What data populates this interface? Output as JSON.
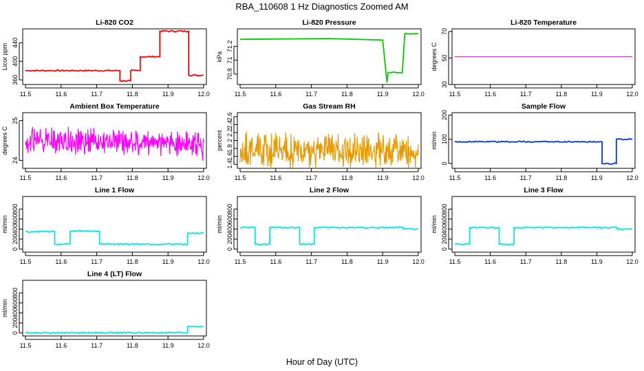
{
  "figure": {
    "title": "RBA_110608  1 Hz Diagnostics Zoomed AM",
    "xlabel": "Hour of Day (UTC)"
  },
  "chart_data": [
    {
      "type": "line",
      "title": "Li-820 CO2",
      "ylabel": "Licor ppm",
      "xlim": [
        11.5,
        12.0
      ],
      "ylim": [
        350,
        470
      ],
      "xticks": [
        "11.5",
        "11.6",
        "11.7",
        "11.8",
        "11.9",
        "12.0"
      ],
      "yticks": [
        360,
        400,
        440
      ],
      "color": "#ff0000",
      "style": "step",
      "series": [
        {
          "values": [
            [
              11.5,
              380
            ],
            [
              11.765,
              380
            ],
            [
              11.765,
              358
            ],
            [
              11.795,
              358
            ],
            [
              11.795,
              380
            ],
            [
              11.822,
              380
            ],
            [
              11.822,
              410
            ],
            [
              11.877,
              410
            ],
            [
              11.877,
              465
            ],
            [
              11.958,
              465
            ],
            [
              11.958,
              370
            ],
            [
              12.0,
              370
            ]
          ]
        }
      ]
    },
    {
      "type": "line",
      "title": "Li-820 Pressure",
      "ylabel": "kPa",
      "xlim": [
        11.5,
        12.0
      ],
      "ylim": [
        70.65,
        71.45
      ],
      "xticks": [
        "11.5",
        "11.6",
        "11.7",
        "11.8",
        "11.9",
        "12.0"
      ],
      "yticks": [
        70.8,
        71.0,
        71.2
      ],
      "color": "#00cc00",
      "style": "step",
      "series": [
        {
          "values": [
            [
              11.5,
              71.3
            ],
            [
              11.75,
              71.31
            ],
            [
              11.9,
              71.29
            ],
            [
              11.912,
              70.68
            ],
            [
              11.915,
              70.82
            ],
            [
              11.955,
              70.82
            ],
            [
              11.962,
              71.38
            ],
            [
              12.0,
              71.38
            ]
          ]
        }
      ]
    },
    {
      "type": "line",
      "title": "Li-820 Temperature",
      "ylabel": "degrees C",
      "xlim": [
        11.5,
        12.0
      ],
      "ylim": [
        30,
        72
      ],
      "xticks": [
        "11.5",
        "11.6",
        "11.7",
        "11.8",
        "11.9",
        "12.0"
      ],
      "yticks": [
        30,
        50,
        70
      ],
      "color": "#cc33cc",
      "style": "flat",
      "series": [
        {
          "values": [
            [
              11.5,
              51
            ],
            [
              12.0,
              51
            ]
          ]
        }
      ]
    },
    {
      "type": "line",
      "title": "Ambient Box Temperature",
      "ylabel": "degrees C",
      "xlim": [
        11.5,
        12.0
      ],
      "ylim": [
        23.8,
        25.2
      ],
      "xticks": [
        "11.5",
        "11.6",
        "11.7",
        "11.8",
        "11.9",
        "12.0"
      ],
      "yticks": [
        24.0,
        25.0
      ],
      "color": "#ff00ff",
      "style": "noise",
      "series": [
        {
          "values": [
            [
              11.5,
              24.5
            ],
            [
              11.9,
              24.45
            ],
            [
              12.0,
              24.35
            ]
          ]
        }
      ]
    },
    {
      "type": "line",
      "title": "Gas Stream RH",
      "ylabel": "percent",
      "xlim": [
        11.5,
        12.0
      ],
      "ylim": [
        1.3,
        2.7
      ],
      "xticks": [
        "11.5",
        "11.6",
        "11.7",
        "11.8",
        "11.9",
        "12.0"
      ],
      "yticks": [
        1.4,
        1.6,
        1.8,
        2.0,
        2.2,
        2.4,
        2.6
      ],
      "color": "#e69a00",
      "style": "noise",
      "series": [
        {
          "values": [
            [
              11.5,
              1.75
            ],
            [
              12.0,
              1.75
            ]
          ]
        }
      ]
    },
    {
      "type": "line",
      "title": "Sample Flow",
      "ylabel": "ml/min",
      "xlim": [
        11.5,
        12.0
      ],
      "ylim": [
        -20,
        210
      ],
      "xticks": [
        "11.5",
        "11.6",
        "11.7",
        "11.8",
        "11.9",
        "12.0"
      ],
      "yticks": [
        0,
        100,
        200
      ],
      "color": "#0033ff",
      "style": "step",
      "series": [
        {
          "values": [
            [
              11.5,
              90
            ],
            [
              11.915,
              90
            ],
            [
              11.915,
              0
            ],
            [
              11.955,
              0
            ],
            [
              11.955,
              100
            ],
            [
              12.0,
              100
            ]
          ]
        }
      ]
    },
    {
      "type": "line",
      "title": "Line 1 Flow",
      "ylabel": "ml/min",
      "xlim": [
        11.5,
        12.0
      ],
      "ylim": [
        -60,
        1050
      ],
      "xticks": [
        "11.5",
        "11.6",
        "11.7",
        "11.8",
        "11.9",
        "12.0"
      ],
      "yticks": [
        0,
        200,
        400,
        600,
        800
      ],
      "color": "#00e5e5",
      "style": "step",
      "series": [
        {
          "values": [
            [
              11.5,
              350
            ],
            [
              11.582,
              350
            ],
            [
              11.582,
              100
            ],
            [
              11.625,
              100
            ],
            [
              11.625,
              360
            ],
            [
              11.708,
              360
            ],
            [
              11.708,
              100
            ],
            [
              11.955,
              100
            ],
            [
              11.955,
              320
            ],
            [
              12.0,
              320
            ]
          ]
        }
      ]
    },
    {
      "type": "line",
      "title": "Line 2 Flow",
      "ylabel": "ml/min",
      "xlim": [
        11.5,
        12.0
      ],
      "ylim": [
        -60,
        1050
      ],
      "xticks": [
        "11.5",
        "11.6",
        "11.7",
        "11.8",
        "11.9",
        "12.0"
      ],
      "yticks": [
        0,
        200,
        400,
        600,
        800
      ],
      "color": "#00e5e5",
      "style": "step",
      "series": [
        {
          "values": [
            [
              11.5,
              430
            ],
            [
              11.542,
              430
            ],
            [
              11.542,
              100
            ],
            [
              11.583,
              100
            ],
            [
              11.583,
              430
            ],
            [
              11.667,
              430
            ],
            [
              11.667,
              100
            ],
            [
              11.708,
              100
            ],
            [
              11.708,
              430
            ],
            [
              11.958,
              430
            ],
            [
              11.958,
              400
            ],
            [
              12.0,
              400
            ]
          ]
        }
      ]
    },
    {
      "type": "line",
      "title": "Line 3 Flow",
      "ylabel": "ml/min",
      "xlim": [
        11.5,
        12.0
      ],
      "ylim": [
        -60,
        1050
      ],
      "xticks": [
        "11.5",
        "11.6",
        "11.7",
        "11.8",
        "11.9",
        "12.0"
      ],
      "yticks": [
        0,
        200,
        400,
        600,
        800
      ],
      "color": "#00e5e5",
      "style": "step",
      "series": [
        {
          "values": [
            [
              11.5,
              100
            ],
            [
              11.542,
              100
            ],
            [
              11.542,
              430
            ],
            [
              11.625,
              430
            ],
            [
              11.625,
              100
            ],
            [
              11.667,
              100
            ],
            [
              11.667,
              430
            ],
            [
              11.958,
              430
            ],
            [
              11.958,
              400
            ],
            [
              12.0,
              400
            ]
          ]
        }
      ]
    },
    {
      "type": "line",
      "title": "Line 4 (LT) Flow",
      "ylabel": "ml/min",
      "xlim": [
        11.5,
        12.0
      ],
      "ylim": [
        -60,
        1050
      ],
      "xticks": [
        "11.5",
        "11.6",
        "11.7",
        "11.8",
        "11.9",
        "12.0"
      ],
      "yticks": [
        0,
        200,
        400,
        600,
        800
      ],
      "color": "#00e5e5",
      "style": "step",
      "series": [
        {
          "values": [
            [
              11.5,
              5
            ],
            [
              11.955,
              5
            ],
            [
              11.955,
              130
            ],
            [
              12.0,
              130
            ]
          ]
        }
      ]
    }
  ]
}
